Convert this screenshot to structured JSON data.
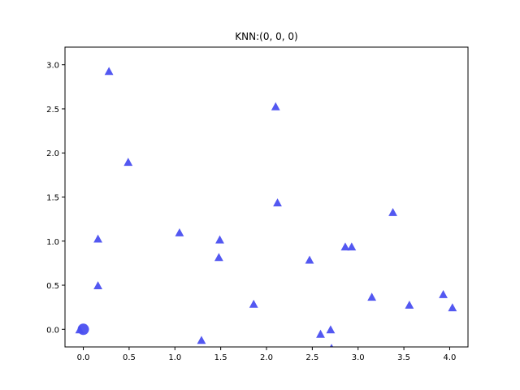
{
  "chart_data": {
    "type": "scatter",
    "title": "KNN:(0, 0, 0)",
    "xlabel": "",
    "ylabel": "",
    "xlim": [
      -0.2,
      4.2
    ],
    "ylim": [
      -0.2,
      3.2
    ],
    "xticks": [
      0.0,
      0.5,
      1.0,
      1.5,
      2.0,
      2.5,
      3.0,
      3.5,
      4.0
    ],
    "xtick_labels": [
      "0.0",
      "0.5",
      "1.0",
      "1.5",
      "2.0",
      "2.5",
      "3.0",
      "3.5",
      "4.0"
    ],
    "yticks": [
      0.0,
      0.5,
      1.0,
      1.5,
      2.0,
      2.5,
      3.0
    ],
    "ytick_labels": [
      "0.0",
      "0.5",
      "1.0",
      "1.5",
      "2.0",
      "2.5",
      "3.0"
    ],
    "grid": false,
    "series": [
      {
        "marker": "triangle",
        "color": "#4a4ff0",
        "points": [
          {
            "x": 0.28,
            "y": 2.92
          },
          {
            "x": 0.49,
            "y": 1.89
          },
          {
            "x": 0.16,
            "y": 1.02
          },
          {
            "x": 0.16,
            "y": 0.49
          },
          {
            "x": 1.05,
            "y": 1.09
          },
          {
            "x": 1.49,
            "y": 1.01
          },
          {
            "x": 1.48,
            "y": 0.81
          },
          {
            "x": 1.29,
            "y": -0.13
          },
          {
            "x": 1.86,
            "y": 0.28
          },
          {
            "x": 2.1,
            "y": 2.52
          },
          {
            "x": 2.12,
            "y": 1.43
          },
          {
            "x": 2.47,
            "y": 0.78
          },
          {
            "x": 2.59,
            "y": -0.06
          },
          {
            "x": 2.7,
            "y": -0.01
          },
          {
            "x": 2.71,
            "y": -0.22
          },
          {
            "x": 2.86,
            "y": 0.93
          },
          {
            "x": 2.93,
            "y": 0.93
          },
          {
            "x": 3.15,
            "y": 0.36
          },
          {
            "x": 3.38,
            "y": 1.32
          },
          {
            "x": 3.56,
            "y": 0.27
          },
          {
            "x": 3.93,
            "y": 0.39
          },
          {
            "x": 4.03,
            "y": 0.24
          },
          {
            "x": -0.04,
            "y": -0.01
          }
        ]
      },
      {
        "marker": "circle",
        "color": "#4a4ff0",
        "points": [
          {
            "x": 0.0,
            "y": 0.0
          }
        ]
      }
    ]
  }
}
